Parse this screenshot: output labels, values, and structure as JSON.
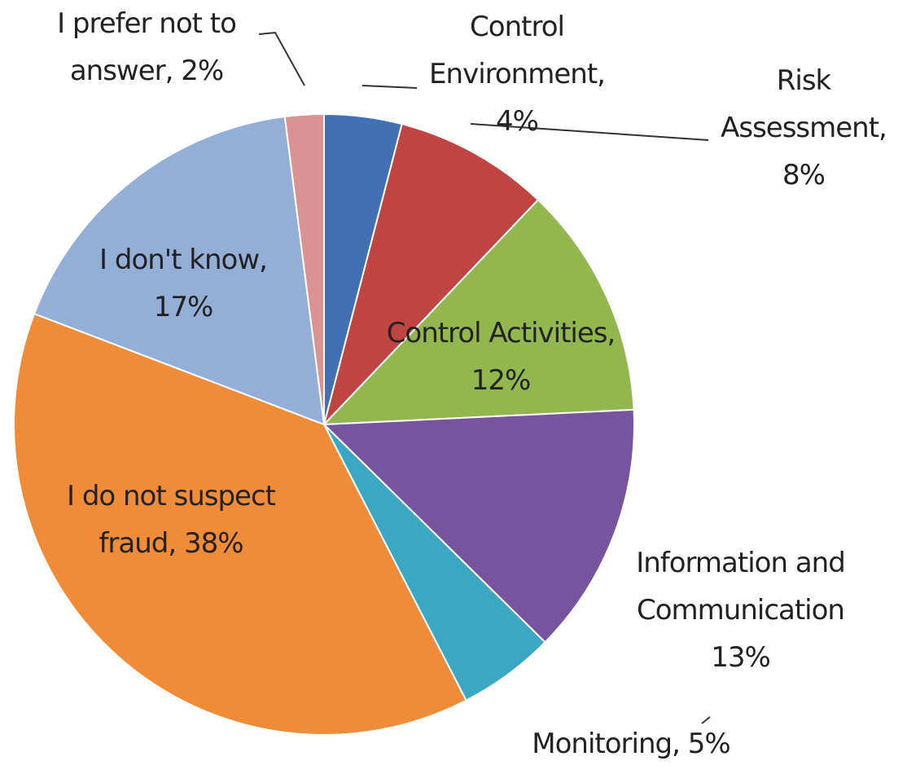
{
  "chart_data": {
    "type": "pie",
    "categories": [
      "Control Environment,",
      "Risk Assessment,",
      "Control Activities,",
      "Information and Communication",
      "Monitoring,",
      "I do not suspect fraud,",
      "I don't know,",
      "I prefer not to answer,"
    ],
    "values": [
      4,
      8,
      12,
      13,
      5,
      38,
      17,
      2
    ],
    "value_labels": [
      "4%",
      "8%",
      "12%",
      "13%",
      "5%",
      "38%",
      "17%",
      "2%"
    ],
    "colors": [
      "#4170b5",
      "#bf4442",
      "#93b74f",
      "#77559e",
      "#3aa8c2",
      "#f08c38",
      "#93afd8",
      "#d99392"
    ]
  }
}
